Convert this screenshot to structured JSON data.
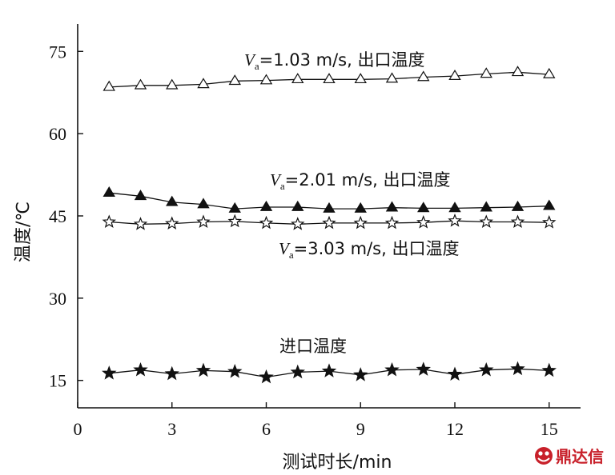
{
  "chart_data": {
    "type": "line",
    "xlabel": "测试时长/min",
    "ylabel": "温度/℃",
    "xlim": [
      0,
      16
    ],
    "ylim": [
      10,
      80
    ],
    "xticks": [
      0,
      3,
      6,
      9,
      12,
      15
    ],
    "yticks": [
      15,
      30,
      45,
      60,
      75
    ],
    "grid": false,
    "x": [
      1,
      2,
      3,
      4,
      5,
      6,
      7,
      8,
      9,
      10,
      11,
      12,
      13,
      14,
      15
    ],
    "series": [
      {
        "key": "s1",
        "label_v": "V",
        "label_sub": "a",
        "label_rest": "=1.03 m/s, 出口温度",
        "marker": "triangle-open",
        "values": [
          68.5,
          68.8,
          68.8,
          69.0,
          69.6,
          69.7,
          69.9,
          69.9,
          69.9,
          70.0,
          70.3,
          70.5,
          70.9,
          71.2,
          70.8
        ]
      },
      {
        "key": "s2",
        "label_v": "V",
        "label_sub": "a",
        "label_rest": "=2.01 m/s, 出口温度",
        "marker": "triangle-filled",
        "values": [
          49.2,
          48.6,
          47.5,
          47.1,
          46.3,
          46.6,
          46.6,
          46.3,
          46.3,
          46.5,
          46.4,
          46.4,
          46.5,
          46.6,
          46.8
        ]
      },
      {
        "key": "s3",
        "label_v": "V",
        "label_sub": "a",
        "label_rest": "=3.03 m/s, 出口温度",
        "marker": "star-open",
        "values": [
          43.9,
          43.5,
          43.6,
          43.9,
          44.0,
          43.7,
          43.5,
          43.7,
          43.7,
          43.7,
          43.8,
          44.1,
          43.9,
          43.9,
          43.8
        ]
      },
      {
        "key": "s4",
        "label_text": "进口温度",
        "marker": "star-filled",
        "values": [
          16.3,
          16.9,
          16.2,
          16.8,
          16.6,
          15.6,
          16.5,
          16.7,
          16.0,
          16.9,
          17.0,
          16.1,
          16.9,
          17.1,
          16.8
        ]
      }
    ]
  },
  "watermark": {
    "logo_icon": "dingdaxin-logo-icon",
    "text": "鼎达信",
    "color": "#c8202a"
  }
}
